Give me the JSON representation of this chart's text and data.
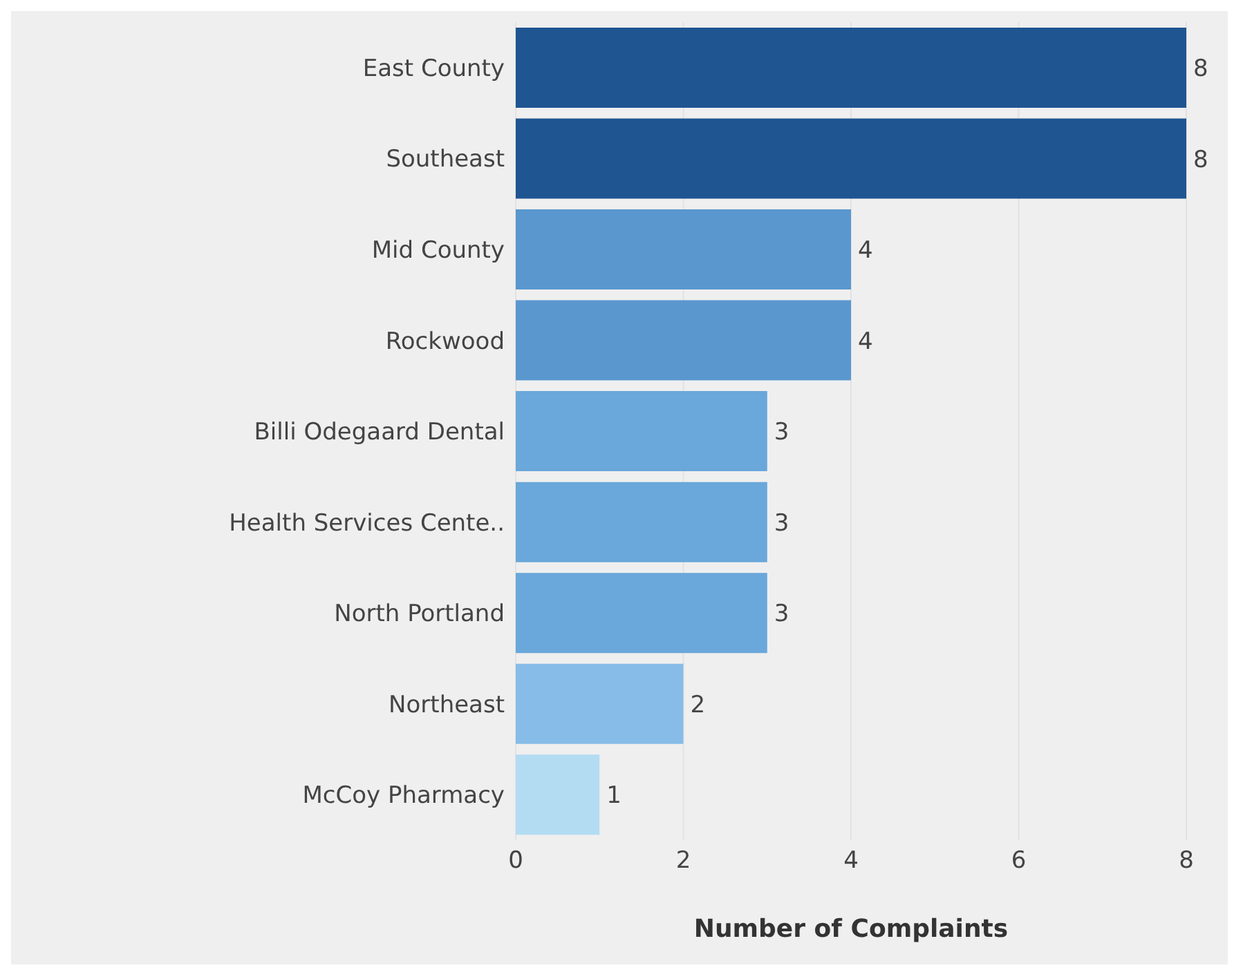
{
  "chart_data": {
    "type": "bar",
    "orientation": "horizontal",
    "xlabel": "Number of Complaints",
    "categories": [
      "East County",
      "Southeast",
      "Mid County",
      "Rockwood",
      "Billi Odegaard Dental",
      "Health Services Cente..",
      "North Portland",
      "Northeast",
      "McCoy Pharmacy"
    ],
    "values": [
      8,
      8,
      4,
      4,
      3,
      3,
      3,
      2,
      1
    ],
    "colors": [
      "#1f5591",
      "#1f5591",
      "#5a97cf",
      "#5a97cf",
      "#6aa7da",
      "#6aa7da",
      "#6aa7da",
      "#86bce7",
      "#b3dcf3"
    ],
    "xlim": [
      0,
      8
    ],
    "xticks": [
      0,
      2,
      4,
      6,
      8
    ],
    "grid": "x",
    "data_labels": true
  }
}
